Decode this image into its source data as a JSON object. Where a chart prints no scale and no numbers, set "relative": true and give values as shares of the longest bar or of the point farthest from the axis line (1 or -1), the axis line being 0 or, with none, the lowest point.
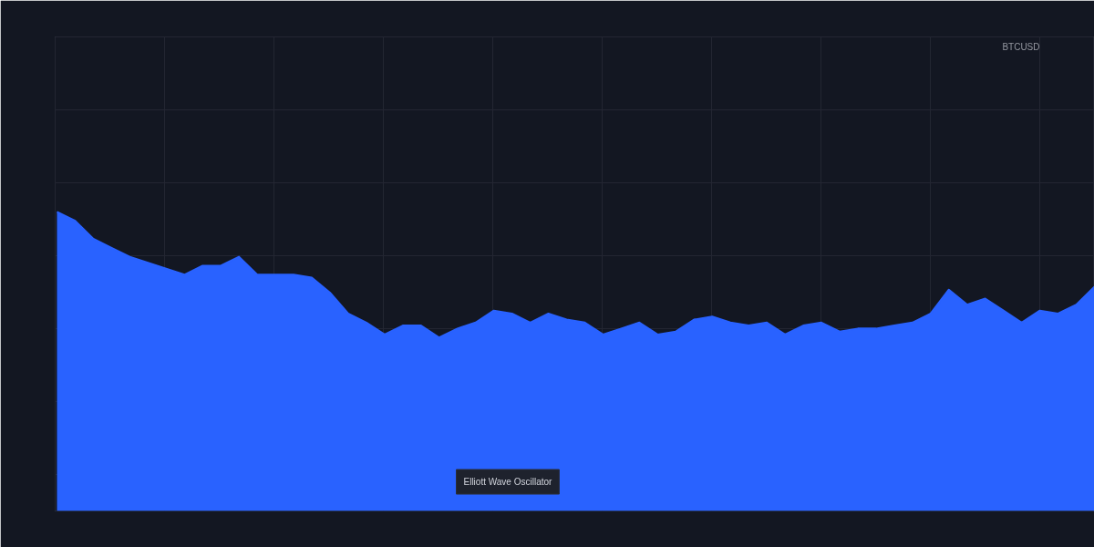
{
  "chart_data": {
    "type": "area",
    "title": "BTCUSD",
    "annotations": [
      "Elliott Wave Oscillator"
    ],
    "relative": true,
    "grid": true,
    "categories": [
      null,
      null,
      null,
      null,
      null,
      null,
      null,
      null,
      null,
      null,
      null,
      null,
      null,
      null,
      null,
      null,
      null,
      null,
      null,
      null,
      null,
      null,
      null,
      null,
      null,
      null,
      null,
      null,
      null,
      null,
      null,
      null,
      null,
      null,
      null,
      null,
      null,
      null,
      null,
      null,
      null,
      null,
      null,
      null,
      null,
      null,
      null,
      null,
      null,
      null,
      null,
      null,
      null,
      null,
      null,
      null,
      null,
      null
    ],
    "series": [
      {
        "color": "#2962ff",
        "values": [
          1.0,
          0.97,
          0.91,
          0.88,
          0.85,
          0.83,
          0.81,
          0.79,
          0.82,
          0.82,
          0.85,
          0.79,
          0.79,
          0.79,
          0.78,
          0.73,
          0.66,
          0.63,
          0.59,
          0.62,
          0.62,
          0.58,
          0.61,
          0.63,
          0.67,
          0.66,
          0.63,
          0.66,
          0.64,
          0.63,
          0.59,
          0.61,
          0.63,
          0.59,
          0.6,
          0.64,
          0.65,
          0.63,
          0.62,
          0.63,
          0.59,
          0.62,
          0.63,
          0.6,
          0.61,
          0.61,
          0.62,
          0.63,
          0.66,
          0.74,
          0.69,
          0.71,
          0.67,
          0.63,
          0.67,
          0.66,
          0.69,
          0.75
        ]
      }
    ]
  }
}
